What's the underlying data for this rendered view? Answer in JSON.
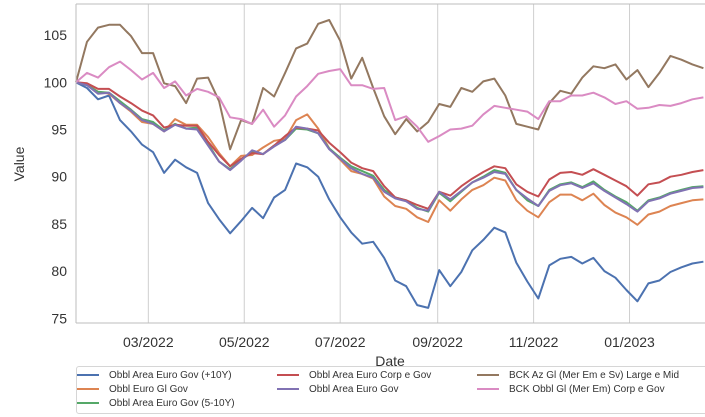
{
  "chart_data": {
    "type": "line",
    "xlabel": "Date",
    "ylabel": "Value",
    "ylim": [
      74.5,
      108.3
    ],
    "xlim": [
      "2022-01-14",
      "2023-02-18"
    ],
    "yticks": [
      75,
      80,
      85,
      90,
      95,
      100,
      105
    ],
    "xticks": [
      {
        "label": "03/2022",
        "date": "2022-03-01"
      },
      {
        "label": "05/2022",
        "date": "2022-05-01"
      },
      {
        "label": "07/2022",
        "date": "2022-07-01"
      },
      {
        "label": "09/2022",
        "date": "2022-09-01"
      },
      {
        "label": "11/2022",
        "date": "2022-11-01"
      },
      {
        "label": "01/2023",
        "date": "2023-01-01"
      }
    ],
    "grid": true,
    "legend_position": "bottom",
    "dates": [
      "2022-01-14",
      "2022-01-21",
      "2022-01-28",
      "2022-02-04",
      "2022-02-11",
      "2022-02-18",
      "2022-02-25",
      "2022-03-04",
      "2022-03-11",
      "2022-03-18",
      "2022-03-25",
      "2022-04-01",
      "2022-04-08",
      "2022-04-15",
      "2022-04-22",
      "2022-04-29",
      "2022-05-06",
      "2022-05-13",
      "2022-05-20",
      "2022-05-27",
      "2022-06-03",
      "2022-06-10",
      "2022-06-17",
      "2022-06-24",
      "2022-07-01",
      "2022-07-08",
      "2022-07-15",
      "2022-07-22",
      "2022-07-29",
      "2022-08-05",
      "2022-08-12",
      "2022-08-19",
      "2022-08-26",
      "2022-09-02",
      "2022-09-09",
      "2022-09-16",
      "2022-09-23",
      "2022-09-30",
      "2022-10-07",
      "2022-10-14",
      "2022-10-21",
      "2022-10-28",
      "2022-11-04",
      "2022-11-11",
      "2022-11-18",
      "2022-11-25",
      "2022-12-02",
      "2022-12-09",
      "2022-12-16",
      "2022-12-23",
      "2022-12-30",
      "2023-01-06",
      "2023-01-13",
      "2023-01-20",
      "2023-01-27",
      "2023-02-03",
      "2023-02-10",
      "2023-02-17"
    ],
    "series": [
      {
        "name": "Obbl Area Euro Gov (+10Y)",
        "color": "#4c72b0",
        "values": [
          100.0,
          99.4,
          98.2,
          98.6,
          96.0,
          94.8,
          93.4,
          92.6,
          90.4,
          91.8,
          91.0,
          90.4,
          87.2,
          85.5,
          84.0,
          85.3,
          86.7,
          85.6,
          87.8,
          88.6,
          91.4,
          91.0,
          90.0,
          87.6,
          85.7,
          84.1,
          82.9,
          83.1,
          81.4,
          79.0,
          78.4,
          76.4,
          76.1,
          80.1,
          78.4,
          79.9,
          82.2,
          83.3,
          84.6,
          84.1,
          80.9,
          78.9,
          77.1,
          80.6,
          81.3,
          81.5,
          80.8,
          81.4,
          80.0,
          79.3,
          78.0,
          76.8,
          78.7,
          79.0,
          79.9,
          80.4,
          80.8,
          81.0
        ]
      },
      {
        "name": "Obbl Euro Gl Gov",
        "color": "#dd8452",
        "values": [
          100.0,
          99.8,
          99.0,
          98.8,
          97.8,
          96.9,
          95.8,
          95.6,
          94.8,
          96.1,
          95.5,
          95.5,
          94.2,
          92.5,
          91.1,
          92.2,
          92.3,
          93.1,
          93.8,
          94.0,
          96.0,
          96.6,
          95.1,
          93.0,
          91.8,
          90.6,
          90.3,
          89.8,
          87.9,
          86.9,
          86.6,
          85.7,
          85.2,
          87.5,
          86.4,
          87.6,
          88.6,
          89.1,
          89.9,
          89.6,
          87.5,
          86.4,
          85.7,
          87.3,
          88.1,
          88.1,
          87.5,
          88.2,
          87.0,
          86.2,
          85.7,
          84.9,
          86.0,
          86.3,
          86.9,
          87.2,
          87.5,
          87.6
        ]
      },
      {
        "name": "Obbl Area Euro Gov (5-10Y)",
        "color": "#55a868",
        "values": [
          100.0,
          99.7,
          99.0,
          98.9,
          98.0,
          97.1,
          96.1,
          95.8,
          94.9,
          95.6,
          95.1,
          95.2,
          93.5,
          91.6,
          90.8,
          91.8,
          92.6,
          92.4,
          93.3,
          93.9,
          95.1,
          95.0,
          94.6,
          93.0,
          92.0,
          91.1,
          90.6,
          90.1,
          88.6,
          87.8,
          87.5,
          86.7,
          86.3,
          88.3,
          87.4,
          88.4,
          89.4,
          90.0,
          90.7,
          90.4,
          88.6,
          87.5,
          86.9,
          88.6,
          89.2,
          89.4,
          88.9,
          89.5,
          88.6,
          87.9,
          87.3,
          86.4,
          87.5,
          87.8,
          88.3,
          88.6,
          88.9,
          89.0
        ]
      },
      {
        "name": "Obbl Area Euro Corp e Gov",
        "color": "#c44e52",
        "values": [
          100.0,
          99.9,
          99.3,
          99.3,
          98.5,
          97.8,
          97.0,
          96.5,
          95.2,
          95.5,
          95.4,
          95.4,
          93.7,
          92.3,
          91.1,
          91.9,
          92.5,
          92.4,
          93.3,
          94.3,
          95.2,
          95.1,
          94.9,
          93.6,
          92.6,
          91.5,
          90.9,
          90.6,
          89.0,
          87.8,
          87.5,
          87.0,
          86.6,
          88.4,
          88.0,
          89.0,
          89.8,
          90.5,
          91.1,
          90.9,
          89.2,
          88.4,
          87.9,
          89.7,
          90.4,
          90.5,
          90.2,
          90.8,
          90.2,
          89.6,
          89.0,
          88.0,
          89.2,
          89.4,
          90.0,
          90.2,
          90.5,
          90.7
        ]
      },
      {
        "name": "Obbl Area Euro Gov",
        "color": "#8172b3",
        "values": [
          100.0,
          99.7,
          98.8,
          98.9,
          97.8,
          97.0,
          96.0,
          95.6,
          94.8,
          95.5,
          95.1,
          95.0,
          93.3,
          91.6,
          90.7,
          91.7,
          92.8,
          92.4,
          93.2,
          93.9,
          95.3,
          95.1,
          94.6,
          92.9,
          91.9,
          90.9,
          90.3,
          89.9,
          88.4,
          87.7,
          87.4,
          86.6,
          86.4,
          88.4,
          87.6,
          88.5,
          89.4,
          89.9,
          90.5,
          90.3,
          88.6,
          87.7,
          86.9,
          88.5,
          89.1,
          89.3,
          88.8,
          89.3,
          88.5,
          87.8,
          87.1,
          86.3,
          87.4,
          87.7,
          88.2,
          88.5,
          88.8,
          88.9
        ]
      },
      {
        "name": "BCK Az Gl (Mer Em e Sv) Large e Mid Cap",
        "color": "#937860",
        "values": [
          100.0,
          104.3,
          105.8,
          106.1,
          106.1,
          104.9,
          103.1,
          103.1,
          99.9,
          99.6,
          97.8,
          100.4,
          100.5,
          98.0,
          92.9,
          96.0,
          95.6,
          99.4,
          98.5,
          101.0,
          103.6,
          104.1,
          106.2,
          106.6,
          104.4,
          100.4,
          102.6,
          99.4,
          96.4,
          94.5,
          96.1,
          94.8,
          95.8,
          97.7,
          97.4,
          99.4,
          99.0,
          100.1,
          100.4,
          98.6,
          95.6,
          95.3,
          95.0,
          97.8,
          99.1,
          98.8,
          100.5,
          101.7,
          101.5,
          101.9,
          100.3,
          101.3,
          99.5,
          101.0,
          102.8,
          102.4,
          101.9,
          101.5
        ]
      },
      {
        "name": "BCK Obbl Gl (Mer Em) Corp e Gov",
        "color": "#da8bc3",
        "values": [
          100.0,
          101.0,
          100.5,
          101.6,
          102.2,
          101.3,
          100.3,
          101.0,
          99.4,
          100.1,
          98.6,
          99.3,
          99.0,
          98.4,
          96.3,
          96.1,
          95.6,
          97.1,
          95.3,
          96.5,
          98.5,
          99.6,
          100.9,
          101.2,
          101.4,
          99.7,
          99.7,
          99.3,
          99.4,
          96.0,
          96.4,
          95.3,
          93.7,
          94.3,
          95.0,
          95.1,
          95.4,
          96.6,
          97.5,
          97.3,
          97.1,
          96.9,
          96.1,
          98.0,
          98.0,
          98.6,
          98.6,
          98.9,
          98.4,
          97.7,
          98.0,
          97.2,
          97.3,
          97.6,
          97.5,
          97.8,
          98.2,
          98.4
        ]
      }
    ]
  },
  "legend": {
    "items": [
      {
        "label": "Obbl Area Euro Gov (+10Y)",
        "color": "#4c72b0"
      },
      {
        "label": "Obbl Area Euro Corp e Gov",
        "color": "#c44e52"
      },
      {
        "label": "BCK Az Gl (Mer Em e Sv) Large e Mid",
        "color": "#937860"
      },
      {
        "label": "Obbl Euro Gl Gov",
        "color": "#dd8452"
      },
      {
        "label": "Obbl Area Euro Gov",
        "color": "#8172b3"
      },
      {
        "label": "BCK Obbl Gl (Mer Em) Corp e Gov",
        "color": "#da8bc3"
      },
      {
        "label": "Obbl Area Euro Gov (5-10Y)",
        "color": "#55a868"
      }
    ]
  }
}
